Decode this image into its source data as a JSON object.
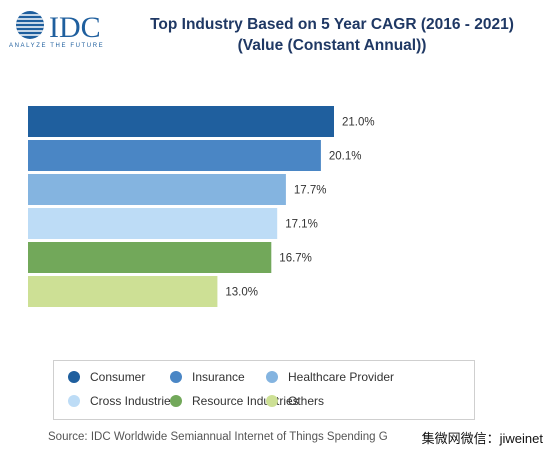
{
  "brand": {
    "name": "IDC",
    "tagline": "ANALYZE THE FUTURE"
  },
  "chart_data": {
    "type": "bar",
    "orientation": "horizontal",
    "title_line1": "Top Industry Based on 5 Year CAGR (2016 - 2021)",
    "title_line2": "(Value (Constant Annual))",
    "categories": [
      "Consumer",
      "Insurance",
      "Healthcare Provider",
      "Cross Industries",
      "Resource Industries",
      "Others"
    ],
    "values": [
      21.0,
      20.1,
      17.7,
      17.1,
      16.7,
      13.0
    ],
    "value_labels": [
      "21.0%",
      "20.1%",
      "17.7%",
      "17.1%",
      "16.7%",
      "13.0%"
    ],
    "colors": [
      "#1f5f9e",
      "#4a86c5",
      "#84b4e0",
      "#bddcf6",
      "#72a85a",
      "#cde095"
    ],
    "xlim": [
      0,
      21.0
    ],
    "grid": false,
    "legend_position": "bottom"
  },
  "source": "Source: IDC Worldwide Semiannual Internet of Things Spending G",
  "watermark": "集微网微信：jiweinet"
}
